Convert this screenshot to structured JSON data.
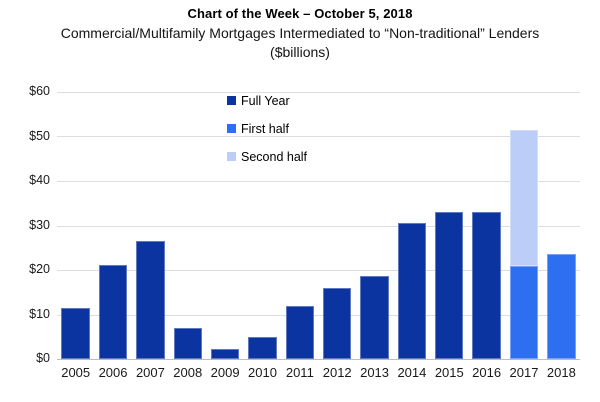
{
  "chart_data": {
    "type": "bar",
    "stacked": true,
    "title": "Chart of the Week – October 5, 2018",
    "subtitle": "Commercial/Multifamily Mortgages Intermediated to “Non-traditional” Lenders",
    "units_line": "($billions)",
    "categories": [
      "2005",
      "2006",
      "2007",
      "2008",
      "2009",
      "2010",
      "2011",
      "2012",
      "2013",
      "2014",
      "2015",
      "2016",
      "2017",
      "2018"
    ],
    "series": [
      {
        "name": "Full Year",
        "color": "#0c34a0",
        "values": [
          11.5,
          21.2,
          26.5,
          7,
          2.3,
          5,
          12,
          16,
          18.6,
          30.6,
          33,
          33,
          null,
          null
        ]
      },
      {
        "name": "First half",
        "color": "#2e6ff2",
        "values": [
          null,
          null,
          null,
          null,
          null,
          null,
          null,
          null,
          null,
          null,
          null,
          null,
          21,
          23.5
        ]
      },
      {
        "name": "Second half",
        "color": "#bccdf8",
        "values": [
          null,
          null,
          null,
          null,
          null,
          null,
          null,
          null,
          null,
          null,
          null,
          null,
          30.5,
          null
        ]
      }
    ],
    "ylim": [
      0,
      60
    ],
    "y_ticks": [
      "$60",
      "$50",
      "$40",
      "$30",
      "$20",
      "$10",
      "$0"
    ],
    "grid": true,
    "grid_color": "#dddddd",
    "legend_position": "inside-top-center",
    "background_color": "#ffffff"
  }
}
